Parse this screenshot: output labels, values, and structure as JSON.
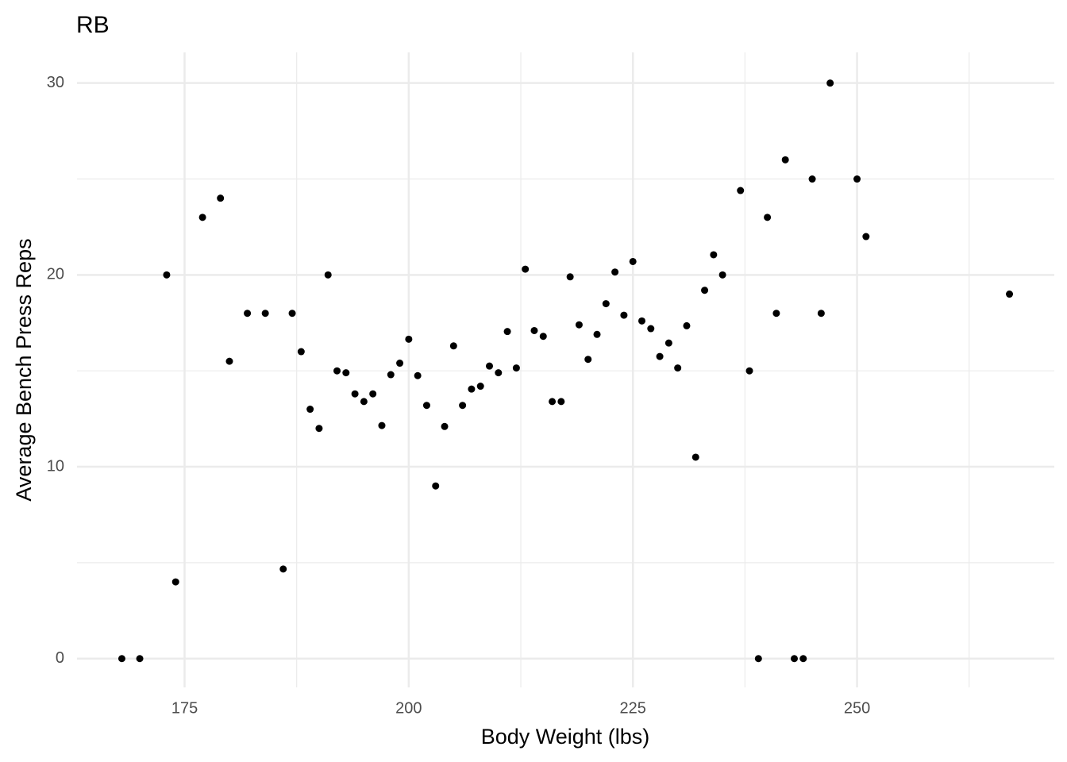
{
  "chart_data": {
    "type": "scatter",
    "title": "RB",
    "x_label": "Body Weight (lbs)",
    "y_label": "Average Bench Press Reps",
    "x": [
      168,
      170,
      173,
      174,
      177,
      179,
      180,
      182,
      184,
      186,
      187,
      188,
      189,
      190,
      191,
      192,
      193,
      194,
      195,
      196,
      197,
      198,
      199,
      200,
      201,
      202,
      203,
      204,
      205,
      206,
      207,
      208,
      209,
      210,
      211,
      212,
      213,
      214,
      215,
      216,
      217,
      218,
      219,
      220,
      221,
      222,
      223,
      224,
      225,
      226,
      227,
      228,
      229,
      230,
      231,
      232,
      233,
      234,
      235,
      237,
      238,
      239,
      240,
      241,
      242,
      243,
      244,
      245,
      246,
      247,
      250,
      251,
      267
    ],
    "series": [
      {
        "color": "#000000",
        "values": [
          0,
          0,
          20,
          4,
          23,
          24,
          15.5,
          18,
          18,
          4.67,
          18,
          16,
          13,
          12,
          20,
          15,
          14.9,
          13.8,
          13.4,
          13.8,
          12.15,
          14.8,
          15.4,
          16.65,
          14.75,
          13.2,
          9,
          12.1,
          16.3,
          13.2,
          14.05,
          14.2,
          15.25,
          14.9,
          17.05,
          15.15,
          20.3,
          17.1,
          16.8,
          13.4,
          13.4,
          19.9,
          17.4,
          15.6,
          16.9,
          18.5,
          20.15,
          17.9,
          20.7,
          17.6,
          17.2,
          15.75,
          16.45,
          15.15,
          17.35,
          10.5,
          19.2,
          21.05,
          20,
          24.4,
          15,
          0,
          23,
          18,
          26,
          0,
          0,
          25,
          18,
          30,
          25,
          22,
          19
        ]
      }
    ],
    "xlim": [
      163,
      272
    ],
    "ylim": [
      -1.5,
      31.6
    ],
    "xticks": [
      175,
      200,
      225,
      250
    ],
    "yticks": [
      0,
      10,
      20,
      30
    ],
    "xminor": [
      187.5,
      212.5,
      237.5,
      262.5
    ],
    "yminor": [
      5,
      15,
      25
    ],
    "grid": true
  }
}
